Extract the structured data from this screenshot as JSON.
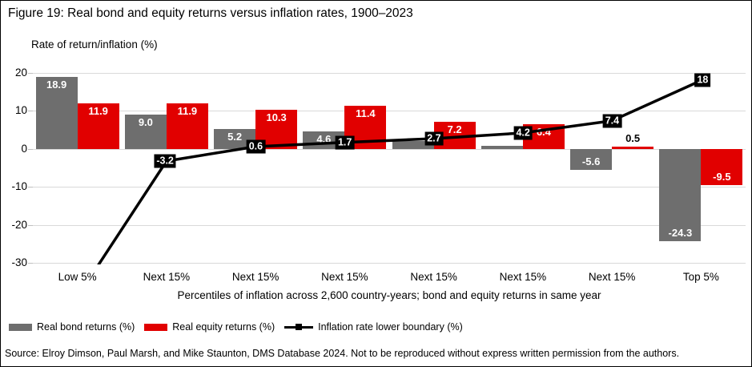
{
  "figure": {
    "title": "Figure 19: Real bond and equity returns versus inflation rates, 1900–2023",
    "y_axis_title": "Rate of return/inflation (%)",
    "x_axis_title": "Percentiles of inflation across 2,600 country-years; bond and equity returns in same year",
    "source": "Source: Elroy Dimson, Paul Marsh, and Mike Staunton, DMS Database 2024. Not to be reproduced without express written permission from the authors."
  },
  "colors": {
    "bond": "#6e6e6e",
    "equity": "#e10000",
    "line": "#000000",
    "grid": "#d9d9d9"
  },
  "legend": {
    "items": [
      {
        "label": "Real bond returns (%)",
        "type": "bar",
        "color": "#6e6e6e"
      },
      {
        "label": "Real equity returns (%)",
        "type": "bar",
        "color": "#e10000"
      },
      {
        "label": "Inflation rate lower boundary (%)",
        "type": "line",
        "color": "#000000"
      }
    ]
  },
  "chart_data": {
    "type": "bar",
    "categories": [
      "Low 5%",
      "Next 15%",
      "Next 15%",
      "Next 15%",
      "Next 15%",
      "Next 15%",
      "Next 15%",
      "Top 5%"
    ],
    "series": [
      {
        "name": "Real bond returns (%)",
        "type": "bar",
        "color": "#6e6e6e",
        "values": [
          18.9,
          9.0,
          5.2,
          4.6,
          2.0,
          0.7,
          -5.6,
          -24.3
        ],
        "labels": [
          "18.9",
          "9.0",
          "5.2",
          "4.6",
          "",
          "",
          "-5.6",
          "-24.3"
        ]
      },
      {
        "name": "Real equity returns (%)",
        "type": "bar",
        "color": "#e10000",
        "values": [
          11.9,
          11.9,
          10.3,
          11.4,
          7.2,
          6.4,
          0.5,
          -9.5
        ],
        "labels": [
          "11.9",
          "11.9",
          "10.3",
          "11.4",
          "7.2",
          "6.4",
          "0.5",
          "-9.5"
        ]
      },
      {
        "name": "Inflation rate lower boundary (%)",
        "type": "line",
        "color": "#000000",
        "values": [
          -39,
          -3.2,
          0.6,
          1.7,
          2.7,
          4.2,
          7.4,
          18
        ],
        "labels": [
          "",
          "-3.2",
          "0.6",
          "1.7",
          "2.7",
          "4.2",
          "7.4",
          "18"
        ]
      }
    ],
    "y_ticks": [
      "20",
      "10",
      "0",
      "-10",
      "-20",
      "-30"
    ],
    "ylim": [
      -30,
      20
    ],
    "grid": true,
    "legend_position": "bottom"
  }
}
